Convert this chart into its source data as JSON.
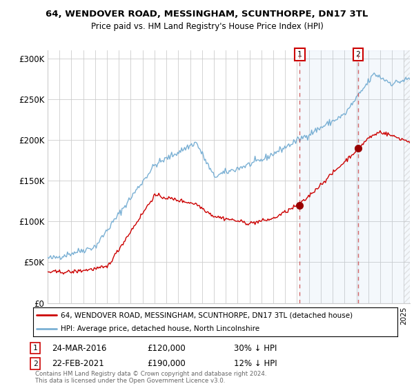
{
  "title": "64, WENDOVER ROAD, MESSINGHAM, SCUNTHORPE, DN17 3TL",
  "subtitle": "Price paid vs. HM Land Registry's House Price Index (HPI)",
  "ylabel_ticks": [
    "£0",
    "£50K",
    "£100K",
    "£150K",
    "£200K",
    "£250K",
    "£300K"
  ],
  "ytick_values": [
    0,
    50000,
    100000,
    150000,
    200000,
    250000,
    300000
  ],
  "ylim": [
    0,
    310000
  ],
  "xlim_start": 1995.0,
  "xlim_end": 2025.5,
  "line1_color": "#cc0000",
  "line2_color": "#7ab0d4",
  "event1_date": 2016.23,
  "event1_price": 120000,
  "event2_date": 2021.13,
  "event2_price": 190000,
  "legend_line1": "64, WENDOVER ROAD, MESSINGHAM, SCUNTHORPE, DN17 3TL (detached house)",
  "legend_line2": "HPI: Average price, detached house, North Lincolnshire",
  "footer": "Contains HM Land Registry data © Crown copyright and database right 2024.\nThis data is licensed under the Open Government Licence v3.0.",
  "background_color": "#ffffff",
  "grid_color": "#cccccc"
}
